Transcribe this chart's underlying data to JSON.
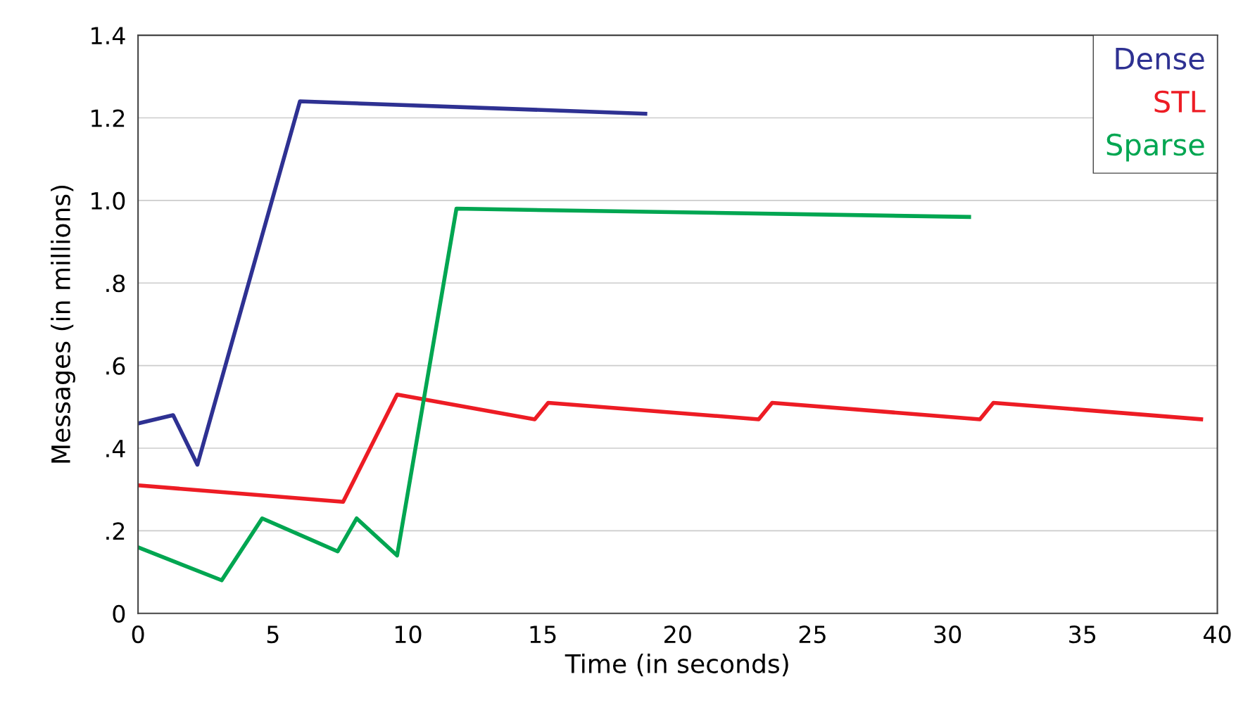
{
  "chart_data": {
    "type": "line",
    "xlabel": "Time (in seconds)",
    "ylabel": "Messages (in millions)",
    "xlim": [
      0,
      40
    ],
    "xticks": [
      0,
      5,
      10,
      15,
      20,
      25,
      30,
      35,
      40
    ],
    "ylim": [
      0,
      1.4
    ],
    "yticks": [
      0,
      {
        "value": 0.2,
        "label": ".2"
      },
      {
        "value": 0.4,
        "label": ".4"
      },
      {
        "value": 0.6,
        "label": ".6"
      },
      {
        "value": 0.8,
        "label": ".8"
      },
      {
        "value": 1.0,
        "label": "1.0"
      },
      {
        "value": 1.2,
        "label": "1.2"
      },
      {
        "value": 1.4,
        "label": "1.4"
      }
    ],
    "grid": "y",
    "legend": "top right",
    "marker": "none",
    "line_style": "solid",
    "series": [
      {
        "name": "Dense",
        "color": "#2e3192",
        "x": [
          0,
          1.3,
          2.2,
          6.0,
          18.8
        ],
        "values": [
          0.46,
          0.48,
          0.36,
          1.24,
          1.21
        ]
      },
      {
        "name": "STL",
        "color": "#ed1c24",
        "x": [
          0,
          7.6,
          9.6,
          14.7,
          15.2,
          23.0,
          23.5,
          31.2,
          31.7,
          39.4
        ],
        "values": [
          0.31,
          0.27,
          0.53,
          0.47,
          0.51,
          0.47,
          0.51,
          0.47,
          0.51,
          0.47
        ]
      },
      {
        "name": "Sparse",
        "color": "#00a651",
        "x": [
          0,
          3.1,
          4.6,
          7.4,
          8.1,
          9.6,
          11.8,
          30.8
        ],
        "values": [
          0.16,
          0.08,
          0.23,
          0.15,
          0.23,
          0.14,
          0.98,
          0.96
        ]
      }
    ]
  }
}
